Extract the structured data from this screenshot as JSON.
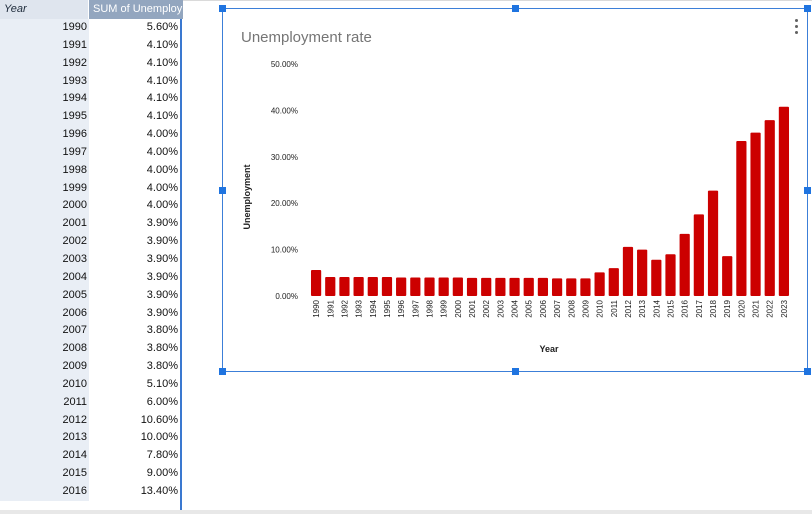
{
  "pivot": {
    "headers": {
      "year": "Year",
      "value": "SUM of Unemployment"
    },
    "rows": [
      {
        "year": "1990",
        "value": "5.60%"
      },
      {
        "year": "1991",
        "value": "4.10%"
      },
      {
        "year": "1992",
        "value": "4.10%"
      },
      {
        "year": "1993",
        "value": "4.10%"
      },
      {
        "year": "1994",
        "value": "4.10%"
      },
      {
        "year": "1995",
        "value": "4.10%"
      },
      {
        "year": "1996",
        "value": "4.00%"
      },
      {
        "year": "1997",
        "value": "4.00%"
      },
      {
        "year": "1998",
        "value": "4.00%"
      },
      {
        "year": "1999",
        "value": "4.00%"
      },
      {
        "year": "2000",
        "value": "4.00%"
      },
      {
        "year": "2001",
        "value": "3.90%"
      },
      {
        "year": "2002",
        "value": "3.90%"
      },
      {
        "year": "2003",
        "value": "3.90%"
      },
      {
        "year": "2004",
        "value": "3.90%"
      },
      {
        "year": "2005",
        "value": "3.90%"
      },
      {
        "year": "2006",
        "value": "3.90%"
      },
      {
        "year": "2007",
        "value": "3.80%"
      },
      {
        "year": "2008",
        "value": "3.80%"
      },
      {
        "year": "2009",
        "value": "3.80%"
      },
      {
        "year": "2010",
        "value": "5.10%"
      },
      {
        "year": "2011",
        "value": "6.00%"
      },
      {
        "year": "2012",
        "value": "10.60%"
      },
      {
        "year": "2013",
        "value": "10.00%"
      },
      {
        "year": "2014",
        "value": "7.80%"
      },
      {
        "year": "2015",
        "value": "9.00%"
      },
      {
        "year": "2016",
        "value": "13.40%"
      }
    ]
  },
  "chart_menu_icon": "more-vertical-icon",
  "chart_data": {
    "type": "bar",
    "title": "Unemployment rate",
    "xlabel": "Year",
    "ylabel": "Unemployment",
    "ylim": [
      0,
      50
    ],
    "yticks": [
      "0.00%",
      "10.00%",
      "20.00%",
      "30.00%",
      "40.00%",
      "50.00%"
    ],
    "grid": false,
    "legend": "none",
    "bar_color": "#cc0000",
    "categories": [
      "1990",
      "1991",
      "1992",
      "1993",
      "1994",
      "1995",
      "1996",
      "1997",
      "1998",
      "1999",
      "2000",
      "2001",
      "2002",
      "2003",
      "2004",
      "2005",
      "2006",
      "2007",
      "2008",
      "2009",
      "2010",
      "2011",
      "2012",
      "2013",
      "2014",
      "2015",
      "2016",
      "2017",
      "2018",
      "2019",
      "2020",
      "2021",
      "2022",
      "2023"
    ],
    "values": [
      5.6,
      4.1,
      4.1,
      4.1,
      4.1,
      4.1,
      4.0,
      4.0,
      4.0,
      4.0,
      4.0,
      3.9,
      3.9,
      3.9,
      3.9,
      3.9,
      3.9,
      3.8,
      3.8,
      3.8,
      5.1,
      6.0,
      10.6,
      10.0,
      7.8,
      9.0,
      13.4,
      17.6,
      22.7,
      8.6,
      33.4,
      35.2,
      37.9,
      40.8
    ]
  }
}
